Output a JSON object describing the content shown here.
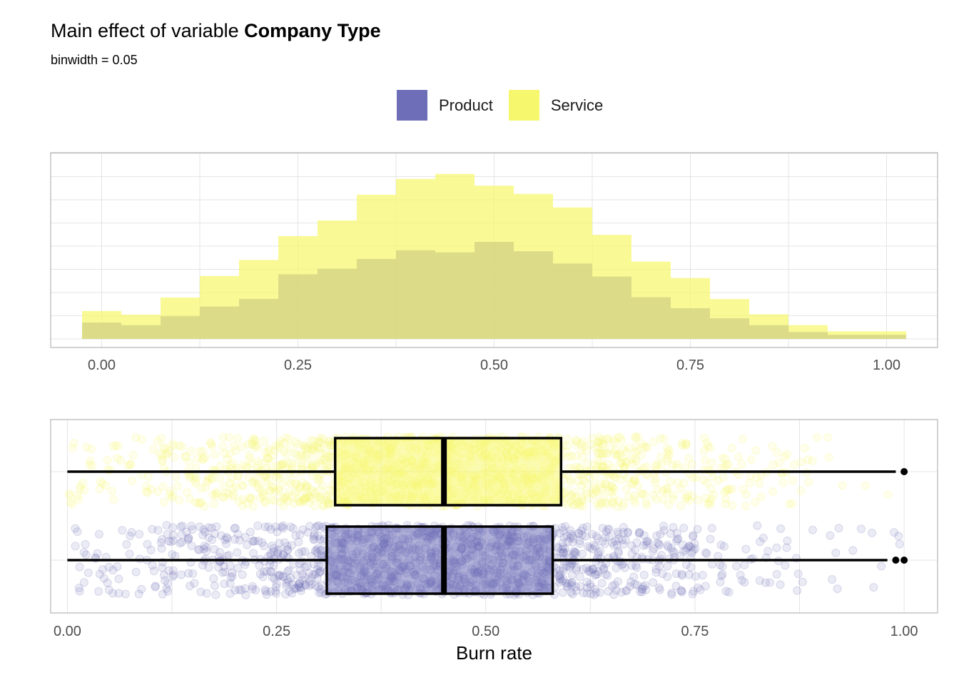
{
  "title": {
    "prefix": "Main effect of variable ",
    "variable": "Company Type"
  },
  "subtitle": "binwidth  = 0.05",
  "legend": [
    {
      "label": "Product",
      "color": "#6E6EB8"
    },
    {
      "label": "Service",
      "color": "#F7F76E"
    }
  ],
  "chart_data": [
    {
      "type": "histogram",
      "binwidth": 0.05,
      "xlim": [
        -0.065,
        1.065
      ],
      "ylim": [
        0,
        1
      ],
      "grid": true,
      "x_ticks": [
        "0.00",
        "0.25",
        "0.50",
        "0.75",
        "1.00"
      ],
      "x_tick_values": [
        0,
        0.25,
        0.5,
        0.75,
        1.0
      ],
      "bin_centers": [
        0.0,
        0.05,
        0.1,
        0.15,
        0.2,
        0.25,
        0.3,
        0.35,
        0.4,
        0.45,
        0.5,
        0.55,
        0.6,
        0.65,
        0.7,
        0.75,
        0.8,
        0.85,
        0.9,
        0.95,
        1.0
      ],
      "series": [
        {
          "name": "Product",
          "color": "#6E6EB8",
          "values": [
            0.088,
            0.074,
            0.122,
            0.174,
            0.215,
            0.347,
            0.377,
            0.429,
            0.476,
            0.465,
            0.521,
            0.471,
            0.405,
            0.335,
            0.224,
            0.165,
            0.111,
            0.074,
            0.037,
            0.022,
            0.022
          ]
        },
        {
          "name": "Service",
          "color": "#F7F76E",
          "values": [
            0.15,
            0.13,
            0.222,
            0.338,
            0.424,
            0.552,
            0.636,
            0.774,
            0.859,
            0.886,
            0.823,
            0.779,
            0.706,
            0.559,
            0.415,
            0.327,
            0.214,
            0.132,
            0.074,
            0.041,
            0.041
          ]
        }
      ]
    },
    {
      "type": "boxplot",
      "xlabel": "Burn rate",
      "xlim": [
        -0.02,
        1.04
      ],
      "x_ticks": [
        "0.00",
        "0.25",
        "0.50",
        "0.75",
        "1.00"
      ],
      "x_tick_values": [
        0,
        0.25,
        0.5,
        0.75,
        1.0
      ],
      "grid": true,
      "series": [
        {
          "name": "Service",
          "color": "#F7F76E",
          "min": 0.0,
          "q1": 0.32,
          "median": 0.45,
          "q3": 0.59,
          "max": 0.99,
          "outliers": [
            1.0
          ]
        },
        {
          "name": "Product",
          "color": "#6E6EB8",
          "min": 0.0,
          "q1": 0.31,
          "median": 0.45,
          "q3": 0.58,
          "max": 0.98,
          "outliers": [
            0.99,
            1.0
          ]
        }
      ]
    }
  ]
}
